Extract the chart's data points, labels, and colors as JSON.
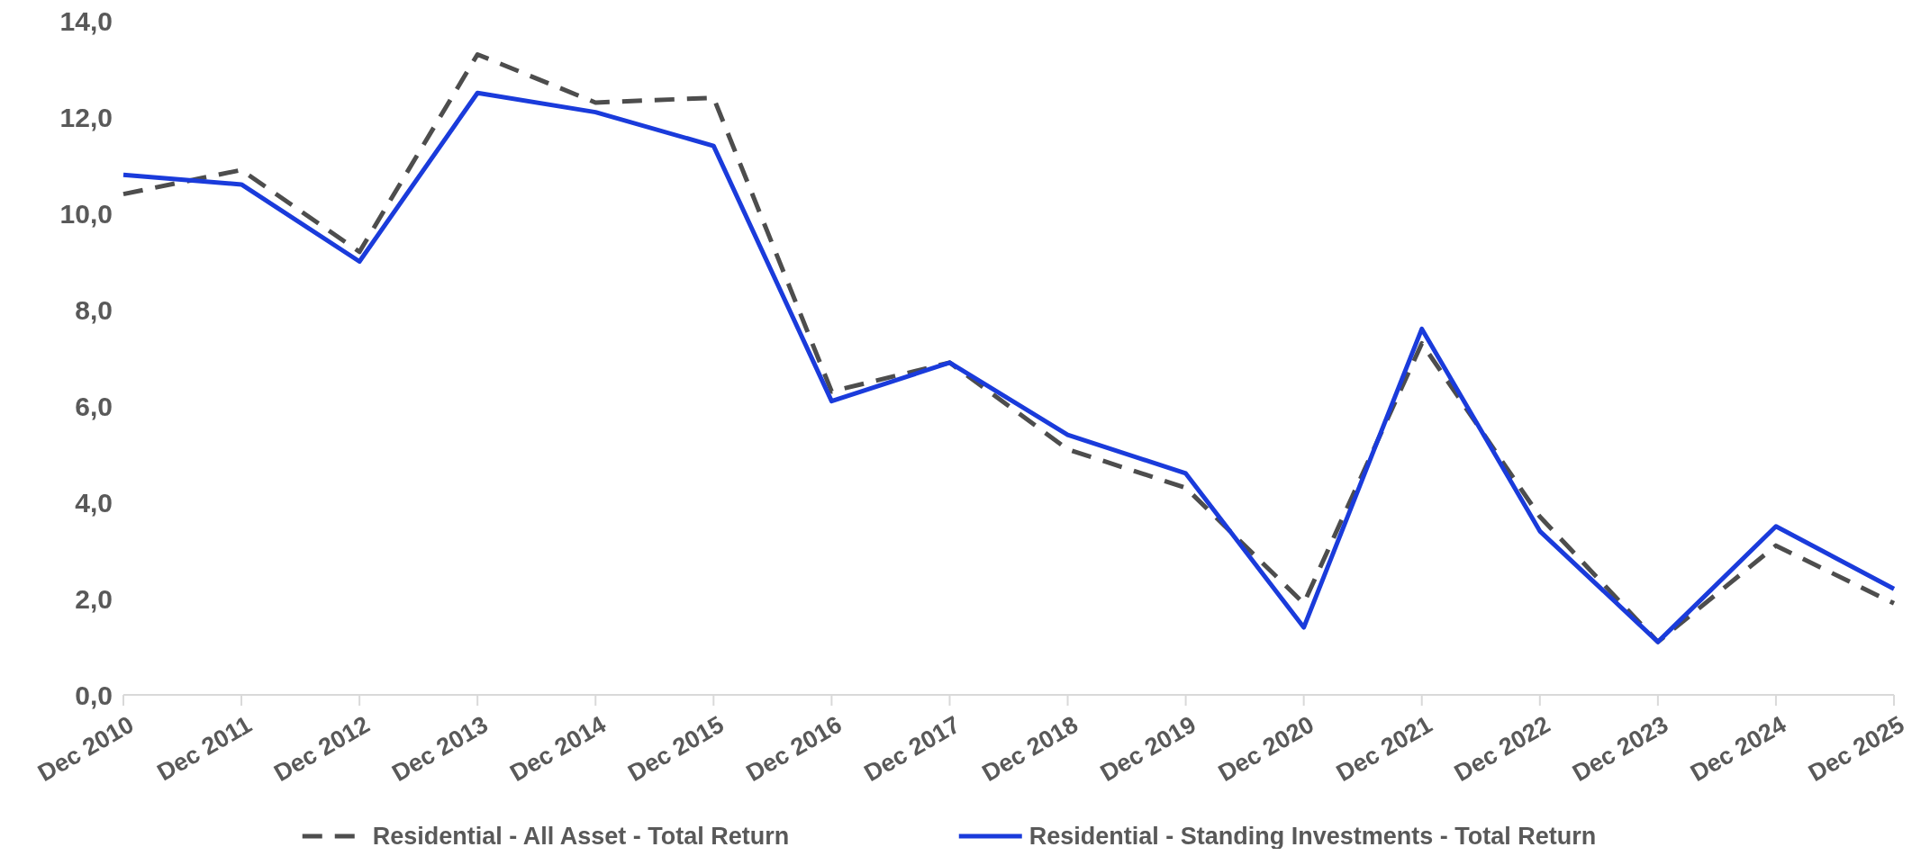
{
  "chart_data": {
    "type": "line",
    "categories": [
      "Dec 2010",
      "Dec 2011",
      "Dec 2012",
      "Dec 2013",
      "Dec 2014",
      "Dec 2015",
      "Dec 2016",
      "Dec 2017",
      "Dec 2018",
      "Dec 2019",
      "Dec 2020",
      "Dec 2021",
      "Dec 2022",
      "Dec 2023",
      "Dec 2024",
      "Dec 2025"
    ],
    "series": [
      {
        "name": "Residential - All Asset - Total Return",
        "color": "#4d4d4d",
        "line_style": "dashed",
        "values": [
          10.4,
          10.9,
          9.2,
          13.3,
          12.3,
          12.4,
          6.3,
          6.9,
          5.1,
          4.3,
          1.9,
          7.3,
          3.7,
          1.1,
          3.1,
          1.9
        ]
      },
      {
        "name": "Residential - Standing Investments - Total Return",
        "color": "#1a3bdb",
        "line_style": "solid",
        "values": [
          10.8,
          10.6,
          9.0,
          12.5,
          12.1,
          11.4,
          6.1,
          6.9,
          5.4,
          4.6,
          1.4,
          7.6,
          3.4,
          1.1,
          3.5,
          2.2
        ]
      }
    ],
    "ylim": [
      0,
      14
    ],
    "yticks": [
      {
        "value": 0,
        "label": "0,0"
      },
      {
        "value": 2,
        "label": "2,0"
      },
      {
        "value": 4,
        "label": "4,0"
      },
      {
        "value": 6,
        "label": "6,0"
      },
      {
        "value": 8,
        "label": "8,0"
      },
      {
        "value": 10,
        "label": "10,0"
      },
      {
        "value": 12,
        "label": "12,0"
      },
      {
        "value": 14,
        "label": "14,0"
      }
    ],
    "legend": "bottom"
  }
}
